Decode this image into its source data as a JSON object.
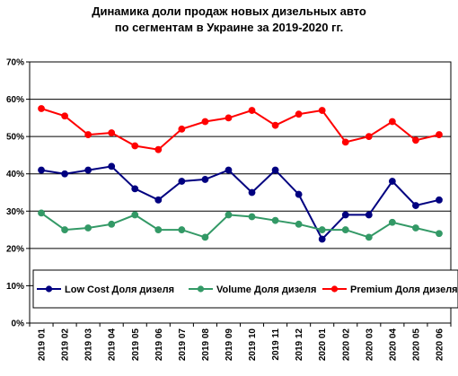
{
  "chart_data": {
    "type": "line",
    "title": "Динамика доли продаж новых дизельных авто",
    "subtitle": "по сегментам в Украине за 2019-2020 гг.",
    "xlabel": "",
    "ylabel": "",
    "ylim": [
      0,
      70
    ],
    "y_ticks": [
      "0%",
      "10%",
      "20%",
      "30%",
      "40%",
      "50%",
      "60%",
      "70%"
    ],
    "grid": "horizontal",
    "legend_position": "bottom-inside",
    "categories": [
      "2019 01",
      "2019 02",
      "2019 03",
      "2019 04",
      "2019 05",
      "2019 06",
      "2019 07",
      "2019 08",
      "2019 09",
      "2019 10",
      "2019 11",
      "2019 12",
      "2020 01",
      "2020 02",
      "2020 03",
      "2020 04",
      "2020 05",
      "2020 06"
    ],
    "series": [
      {
        "name": "Low Cost Доля дизеля",
        "color": "#000080",
        "values": [
          41,
          40,
          41,
          42,
          36,
          33,
          38,
          38.5,
          41,
          35,
          41,
          34.5,
          22.5,
          29,
          29,
          38,
          31.5,
          33
        ]
      },
      {
        "name": "Volume Доля дизеля",
        "color": "#339966",
        "values": [
          29.5,
          25,
          25.5,
          26.5,
          29,
          25,
          25,
          23,
          29,
          28.5,
          27.5,
          26.5,
          25,
          25,
          23,
          27,
          25.5,
          24
        ]
      },
      {
        "name": "Premium Доля дизеля",
        "color": "#ff0000",
        "values": [
          57.5,
          55.5,
          50.5,
          51,
          47.5,
          46.5,
          52,
          54,
          55,
          57,
          53,
          56,
          57,
          48.5,
          50,
          54,
          49,
          50.5
        ]
      }
    ]
  }
}
